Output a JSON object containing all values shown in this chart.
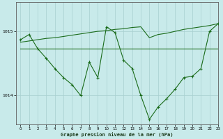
{
  "title": "Graphe pression niveau de la mer (hPa)",
  "background_color": "#c8eaea",
  "grid_color": "#a8d0d0",
  "line_color": "#1a6b1a",
  "xlim": [
    -0.5,
    23
  ],
  "ylim": [
    1013.55,
    1015.45
  ],
  "xticks": [
    0,
    1,
    2,
    3,
    4,
    5,
    6,
    7,
    8,
    9,
    10,
    11,
    12,
    13,
    14,
    15,
    16,
    17,
    18,
    19,
    20,
    21,
    22,
    23
  ],
  "yticks": [
    1014,
    1015
  ],
  "y_main": [
    1014.87,
    1014.95,
    1014.73,
    1014.58,
    1014.42,
    1014.28,
    1014.17,
    1014.0,
    1014.52,
    1014.28,
    1015.07,
    1014.98,
    1014.55,
    1014.42,
    1014.0,
    1013.63,
    1013.82,
    1013.95,
    1014.1,
    1014.28,
    1014.3,
    1014.42,
    1015.0,
    1015.12
  ],
  "y_flat": [
    1014.73,
    1014.73,
    1014.73,
    1014.73,
    1014.73,
    1014.73,
    1014.73,
    1014.73,
    1014.73,
    1014.73,
    1014.73,
    1014.73,
    1014.73,
    1014.73,
    1014.73,
    1014.73,
    1014.73,
    1014.73,
    1014.73,
    1014.73,
    1014.73,
    1014.73,
    1014.73,
    1014.73
  ],
  "y_rise": [
    1014.83,
    1014.85,
    1014.87,
    1014.89,
    1014.9,
    1014.92,
    1014.94,
    1014.96,
    1014.98,
    1015.0,
    1015.01,
    1015.03,
    1015.04,
    1015.06,
    1015.07,
    1014.9,
    1014.95,
    1014.97,
    1015.0,
    1015.03,
    1015.05,
    1015.07,
    1015.09,
    1015.12
  ]
}
